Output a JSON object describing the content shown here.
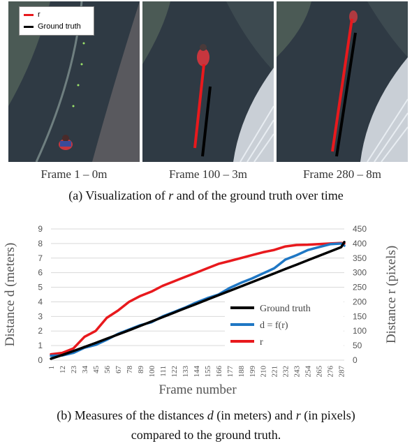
{
  "frames": [
    {
      "label": "Frame 1 – 0m"
    },
    {
      "label": "Frame 100 – 3m"
    },
    {
      "label": "Frame 280 – 8m"
    }
  ],
  "image_legend": {
    "r_label": "r",
    "gt_label": "Ground truth",
    "r_color": "#e8191d",
    "gt_color": "#000000"
  },
  "caption_a": {
    "prefix": "(a) Visualization of ",
    "var": "r",
    "suffix": " and of the ground truth over time"
  },
  "caption_b": {
    "line1_prefix": "(b) Measures of the distances ",
    "var_d": "d",
    "line1_mid": " (in meters) and ",
    "var_r": "r",
    "line1_suffix": " (in pixels)",
    "line2": "compared to the ground truth."
  },
  "chart_data": {
    "type": "line",
    "title": "",
    "xlabel": "Frame number",
    "ylabel": "Distance d (meters)",
    "y2label": "Distance r (pixels)",
    "x_ticks": [
      1,
      12,
      23,
      34,
      45,
      56,
      67,
      78,
      89,
      100,
      111,
      122,
      133,
      144,
      155,
      166,
      177,
      188,
      199,
      210,
      221,
      232,
      243,
      254,
      265,
      276,
      287
    ],
    "ylim": [
      0,
      9
    ],
    "y_ticks": [
      0,
      1,
      2,
      3,
      4,
      5,
      6,
      7,
      8,
      9
    ],
    "y2lim": [
      0,
      450
    ],
    "y2_ticks": [
      0,
      50,
      100,
      150,
      200,
      250,
      300,
      350,
      400,
      450
    ],
    "grid": true,
    "legend_position": "bottom-right",
    "series": [
      {
        "name": "Ground truth",
        "axis": "left",
        "color": "#000000",
        "x": [
          1,
          12,
          23,
          34,
          45,
          56,
          67,
          78,
          89,
          100,
          111,
          122,
          133,
          144,
          155,
          166,
          177,
          188,
          199,
          210,
          221,
          232,
          243,
          254,
          265,
          276,
          287,
          290
        ],
        "values": [
          0.1,
          0.35,
          0.62,
          0.9,
          1.18,
          1.47,
          1.76,
          2.05,
          2.35,
          2.65,
          2.95,
          3.25,
          3.55,
          3.85,
          4.15,
          4.45,
          4.75,
          5.05,
          5.35,
          5.65,
          5.95,
          6.25,
          6.55,
          6.85,
          7.15,
          7.45,
          7.75,
          8.1
        ]
      },
      {
        "name": "d = f(r)",
        "axis": "left",
        "color": "#1f77c4",
        "x": [
          1,
          12,
          23,
          34,
          45,
          56,
          67,
          78,
          89,
          100,
          111,
          122,
          133,
          144,
          155,
          166,
          177,
          188,
          199,
          210,
          221,
          232,
          243,
          254,
          265,
          276,
          287,
          290
        ],
        "values": [
          0.3,
          0.32,
          0.5,
          0.85,
          1.05,
          1.4,
          1.8,
          2.1,
          2.4,
          2.6,
          3.0,
          3.3,
          3.6,
          3.95,
          4.25,
          4.5,
          4.95,
          5.3,
          5.6,
          5.95,
          6.3,
          6.9,
          7.2,
          7.55,
          7.75,
          7.95,
          8.0,
          7.85
        ]
      },
      {
        "name": "r",
        "axis": "right",
        "color": "#e8191d",
        "x": [
          1,
          12,
          23,
          34,
          45,
          56,
          67,
          78,
          89,
          100,
          111,
          122,
          133,
          144,
          155,
          166,
          177,
          188,
          199,
          210,
          221,
          232,
          243,
          254,
          265,
          276,
          287,
          290
        ],
        "values": [
          20,
          25,
          40,
          80,
          100,
          145,
          170,
          200,
          220,
          235,
          255,
          270,
          285,
          300,
          315,
          330,
          340,
          350,
          360,
          370,
          378,
          390,
          395,
          396,
          398,
          400,
          402,
          400
        ]
      }
    ]
  }
}
